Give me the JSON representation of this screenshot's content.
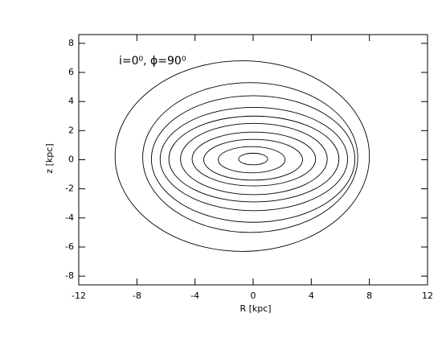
{
  "chart_data": {
    "type": "contour",
    "annotation": "i=0⁰,  ϕ=90⁰",
    "x_label": "R [kpc]",
    "y_label": "z [kpc]",
    "xlim": [
      -12,
      12
    ],
    "ylim": [
      -8.6,
      8.6
    ],
    "xticks": [
      -12,
      -8,
      -4,
      0,
      4,
      8,
      12
    ],
    "yticks": [
      -8,
      -6,
      -4,
      -2,
      0,
      2,
      4,
      6,
      8
    ],
    "contours": [
      {
        "x0": 0,
        "z0": 0.05,
        "a": 1.0,
        "b": 0.4
      },
      {
        "x0": -0.1,
        "z0": 0.0,
        "a": 2.3,
        "b": 0.9
      },
      {
        "x0": 0,
        "z0": 0.0,
        "a": 3.4,
        "b": 1.4
      },
      {
        "x0": 0.05,
        "z0": 0.05,
        "a": 4.25,
        "b": 1.85
      },
      {
        "x0": 0.05,
        "z0": 0.05,
        "a": 5.05,
        "b": 2.45
      },
      {
        "x0": 0.05,
        "z0": 0.05,
        "a": 5.85,
        "b": 2.95
      },
      {
        "x0": 0.05,
        "z0": 0.05,
        "a": 6.45,
        "b": 3.55
      },
      {
        "x0": 0,
        "z0": 0.05,
        "a": 7.0,
        "b": 4.35
      },
      {
        "x0": -0.2,
        "z0": 0.15,
        "a": 7.4,
        "b": 5.15
      },
      {
        "x0": -0.75,
        "z0": 0.25,
        "a": 8.75,
        "b": 6.55
      }
    ]
  }
}
